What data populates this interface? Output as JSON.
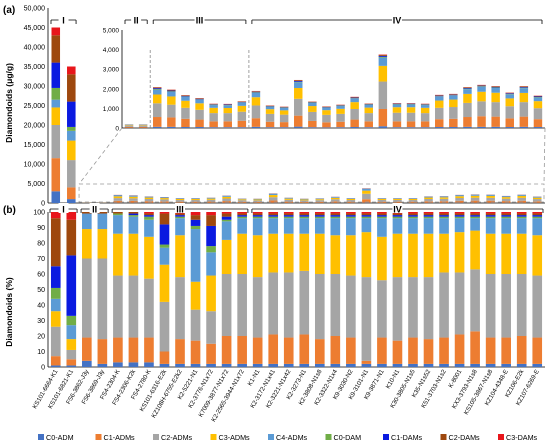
{
  "colors": {
    "C0-ADM": "#4472c4",
    "C1-ADMs": "#ed7d31",
    "C2-ADMs": "#a5a5a5",
    "C3-ADMs": "#ffc000",
    "C4-ADMs": "#5b9bd5",
    "C0-DAM": "#70ad47",
    "C1-DAMs": "#0a1ae0",
    "C2-DAMs": "#9e480e",
    "C3-DAMs": "#e8161b"
  },
  "panel_a": {
    "label": "(a)",
    "ylabel": "Diamondoids (μg/g)",
    "group_labels": [
      "I",
      "II",
      "III",
      "IV"
    ]
  },
  "panel_b": {
    "label": "(b)",
    "ylabel": "Diamondoids (%)",
    "group_labels": [
      "I",
      "II",
      "III",
      "IV"
    ]
  },
  "chart_data": [
    {
      "type": "bar",
      "stacked": true,
      "panel": "a-main",
      "ylabel": "Diamondoids (μg/g)",
      "ylim": [
        0,
        50000
      ],
      "yticks": [
        "0",
        "5,000",
        "10,000",
        "15,000",
        "20,000",
        "25,000",
        "30,000",
        "35,000",
        "40,000",
        "45,000",
        "50,000"
      ],
      "series_keys": [
        "C0-ADM",
        "C1-ADMs",
        "C2-ADMs",
        "C3-ADMs",
        "C4-ADMs",
        "C0-DAM",
        "C1-DAMs",
        "C2-DAMs",
        "C3-DAMs"
      ],
      "bars": [
        [
          3000,
          8500,
          8500,
          4500,
          2000,
          3000,
          6500,
          7000,
          2000
        ],
        [
          1000,
          3000,
          7000,
          5000,
          2500,
          1000,
          6500,
          7000,
          2000
        ],
        [
          10,
          45,
          80,
          25,
          10,
          5,
          5,
          5,
          0
        ],
        [
          10,
          45,
          80,
          25,
          10,
          5,
          5,
          5,
          0
        ],
        [
          60,
          500,
          700,
          450,
          250,
          30,
          40,
          40,
          10
        ],
        [
          60,
          480,
          650,
          420,
          230,
          30,
          40,
          40,
          10
        ],
        [
          50,
          420,
          560,
          360,
          200,
          20,
          30,
          30,
          10
        ],
        [
          50,
          380,
          500,
          330,
          180,
          20,
          30,
          30,
          10
        ],
        [
          40,
          300,
          420,
          270,
          140,
          20,
          20,
          20,
          10
        ],
        [
          40,
          300,
          420,
          260,
          140,
          20,
          20,
          20,
          10
        ],
        [
          40,
          330,
          460,
          300,
          160,
          20,
          20,
          20,
          10
        ],
        [
          60,
          440,
          650,
          420,
          220,
          30,
          30,
          30,
          10
        ],
        [
          40,
          280,
          400,
          240,
          120,
          20,
          20,
          20,
          10
        ],
        [
          40,
          260,
          380,
          220,
          120,
          20,
          20,
          20,
          10
        ],
        [
          70,
          560,
          860,
          550,
          290,
          30,
          40,
          40,
          10
        ],
        [
          40,
          320,
          460,
          300,
          160,
          20,
          20,
          20,
          10
        ],
        [
          30,
          260,
          380,
          240,
          120,
          20,
          20,
          20,
          10
        ],
        [
          40,
          280,
          400,
          260,
          140,
          20,
          20,
          20,
          10
        ],
        [
          50,
          380,
          540,
          350,
          180,
          20,
          30,
          30,
          10
        ],
        [
          40,
          300,
          420,
          280,
          140,
          20,
          20,
          20,
          10
        ],
        [
          90,
          880,
          1400,
          800,
          420,
          40,
          50,
          50,
          20
        ],
        [
          40,
          300,
          440,
          280,
          140,
          20,
          20,
          20,
          10
        ],
        [
          40,
          300,
          440,
          280,
          140,
          20,
          20,
          20,
          10
        ],
        [
          40,
          300,
          420,
          270,
          140,
          20,
          20,
          20,
          10
        ],
        [
          50,
          400,
          580,
          370,
          200,
          20,
          30,
          30,
          10
        ],
        [
          50,
          420,
          600,
          380,
          200,
          20,
          30,
          30,
          10
        ],
        [
          60,
          500,
          720,
          460,
          240,
          30,
          30,
          30,
          10
        ],
        [
          60,
          540,
          760,
          490,
          250,
          30,
          30,
          30,
          10
        ],
        [
          60,
          520,
          740,
          480,
          240,
          30,
          30,
          30,
          10
        ],
        [
          50,
          440,
          620,
          400,
          210,
          20,
          30,
          30,
          10
        ],
        [
          60,
          520,
          740,
          470,
          240,
          30,
          30,
          30,
          10
        ],
        [
          50,
          400,
          560,
          360,
          190,
          20,
          30,
          30,
          10
        ]
      ]
    },
    {
      "type": "bar",
      "stacked": true,
      "panel": "a-inset",
      "ylim": [
        0,
        5000
      ],
      "yticks": [
        "0",
        "1,000",
        "2,000",
        "3,000",
        "4,000",
        "5,000"
      ],
      "series_keys": [
        "C0-ADM",
        "C1-ADMs",
        "C2-ADMs",
        "C3-ADMs",
        "C4-ADMs",
        "C0-DAM",
        "C1-DAMs",
        "C2-DAMs",
        "C3-DAMs"
      ],
      "bar_indices": [
        2,
        3,
        4,
        5,
        6,
        7,
        8,
        9,
        10,
        11,
        12,
        13,
        14,
        15,
        16,
        17,
        18,
        19,
        20,
        21,
        22,
        23,
        24,
        25,
        26,
        27,
        28,
        29,
        30,
        31
      ]
    },
    {
      "type": "bar",
      "stacked": true,
      "panel": "b",
      "ylabel": "Diamondoids (%)",
      "ylim": [
        0,
        100
      ],
      "yticks": [
        "0",
        "10",
        "20",
        "30",
        "40",
        "50",
        "60",
        "70",
        "80",
        "90",
        "100"
      ],
      "categories": [
        "KS101-6664-K1",
        "KS101-6821-K1",
        "FS6-3862-J3y",
        "FS6-3869-J3y",
        "FS4-2304-K",
        "FS4-2306-K2k",
        "FS4-2780-K",
        "KS101-6316-E2k",
        "KZ108H-6755-E2k2",
        "K2-5221-N1",
        "K2-3776-N1x72",
        "K7009-3877-N1x72",
        "K2-2565-3944-N1x72",
        "K1-N1",
        "K2-3172-N1x41",
        "K2-3221-N1x42",
        "K2-3273-N1",
        "K2-3808-N1s8",
        "K2-3322-N1x4",
        "K9-3030-N2",
        "K9-3101-N1",
        "K9-3871-N1",
        "K10-N1",
        "K30-3805-N1s5",
        "K35-N1s52",
        "K51-3703-N1s2",
        "K-8001",
        "KX3-3793-N1s8",
        "KS105-3867-N1s8",
        "KZ104-4348-E",
        "KZ106-E2k",
        "KZ107-6269-E"
      ],
      "series_keys": [
        "C0-ADM",
        "C1-ADMs",
        "C2-ADMs",
        "C3-ADMs",
        "C4-ADMs",
        "C0-DAM",
        "C1-DAMs",
        "C2-DAMs",
        "C3-DAMs"
      ],
      "legend": [
        "C0-ADM",
        "C1-ADMs",
        "C2-ADMs",
        "C3-ADMs",
        "C4-ADMs",
        "C0-DAM",
        "C1-DAMs",
        "C2-DAMs",
        "C3-DAMs"
      ],
      "legend_position": "bottom",
      "percent": [
        [
          1,
          6,
          19,
          10,
          8,
          7,
          14,
          31,
          4
        ],
        [
          1,
          4,
          6,
          7,
          9,
          6,
          39,
          23,
          5
        ],
        [
          4,
          15,
          51,
          19,
          10,
          0,
          0,
          1,
          0
        ],
        [
          2,
          16,
          52,
          19,
          10,
          0,
          0,
          1,
          0
        ],
        [
          3,
          16,
          40,
          27,
          12,
          1,
          0,
          1,
          0
        ],
        [
          3,
          16,
          40,
          27,
          11,
          1,
          1,
          1,
          0
        ],
        [
          3,
          16,
          38,
          27,
          11,
          2,
          1,
          1,
          1
        ],
        [
          2,
          8,
          32,
          24,
          11,
          2,
          13,
          7,
          1
        ],
        [
          2,
          16,
          40,
          27,
          11,
          1,
          1,
          1,
          1
        ],
        [
          2,
          15,
          20,
          18,
          34,
          2,
          4,
          3,
          2
        ],
        [
          2,
          13,
          21,
          23,
          15,
          4,
          13,
          7,
          2
        ],
        [
          2,
          18,
          40,
          22,
          12,
          1,
          2,
          2,
          1
        ],
        [
          2,
          18,
          40,
          26,
          10,
          1,
          1,
          1,
          1
        ],
        [
          2,
          17,
          39,
          27,
          11,
          1,
          1,
          1,
          1
        ],
        [
          2,
          19,
          40,
          25,
          10,
          1,
          1,
          1,
          1
        ],
        [
          2,
          17,
          42,
          25,
          10,
          1,
          1,
          1,
          1
        ],
        [
          2,
          19,
          41,
          24,
          10,
          1,
          1,
          1,
          1
        ],
        [
          2,
          16,
          42,
          26,
          10,
          1,
          1,
          1,
          1
        ],
        [
          2,
          18,
          40,
          25,
          11,
          1,
          1,
          1,
          1
        ],
        [
          2,
          17,
          40,
          26,
          11,
          1,
          1,
          1,
          1
        ],
        [
          2,
          2,
          54,
          29,
          9,
          1,
          1,
          1,
          1
        ],
        [
          2,
          17,
          37,
          28,
          12,
          1,
          1,
          1,
          1
        ],
        [
          2,
          15,
          41,
          28,
          10,
          1,
          1,
          1,
          1
        ],
        [
          2,
          17,
          39,
          28,
          10,
          1,
          1,
          1,
          1
        ],
        [
          2,
          16,
          40,
          28,
          10,
          1,
          1,
          1,
          1
        ],
        [
          2,
          17,
          42,
          25,
          10,
          1,
          1,
          1,
          1
        ],
        [
          2,
          19,
          40,
          26,
          9,
          1,
          1,
          1,
          1
        ],
        [
          2,
          21,
          40,
          25,
          8,
          1,
          1,
          1,
          1
        ],
        [
          2,
          17,
          41,
          26,
          10,
          1,
          1,
          1,
          1
        ],
        [
          2,
          17,
          41,
          26,
          10,
          1,
          1,
          1,
          1
        ],
        [
          2,
          18,
          40,
          26,
          10,
          1,
          1,
          1,
          1
        ],
        [
          2,
          17,
          40,
          26,
          11,
          1,
          1,
          1,
          1
        ]
      ]
    }
  ]
}
